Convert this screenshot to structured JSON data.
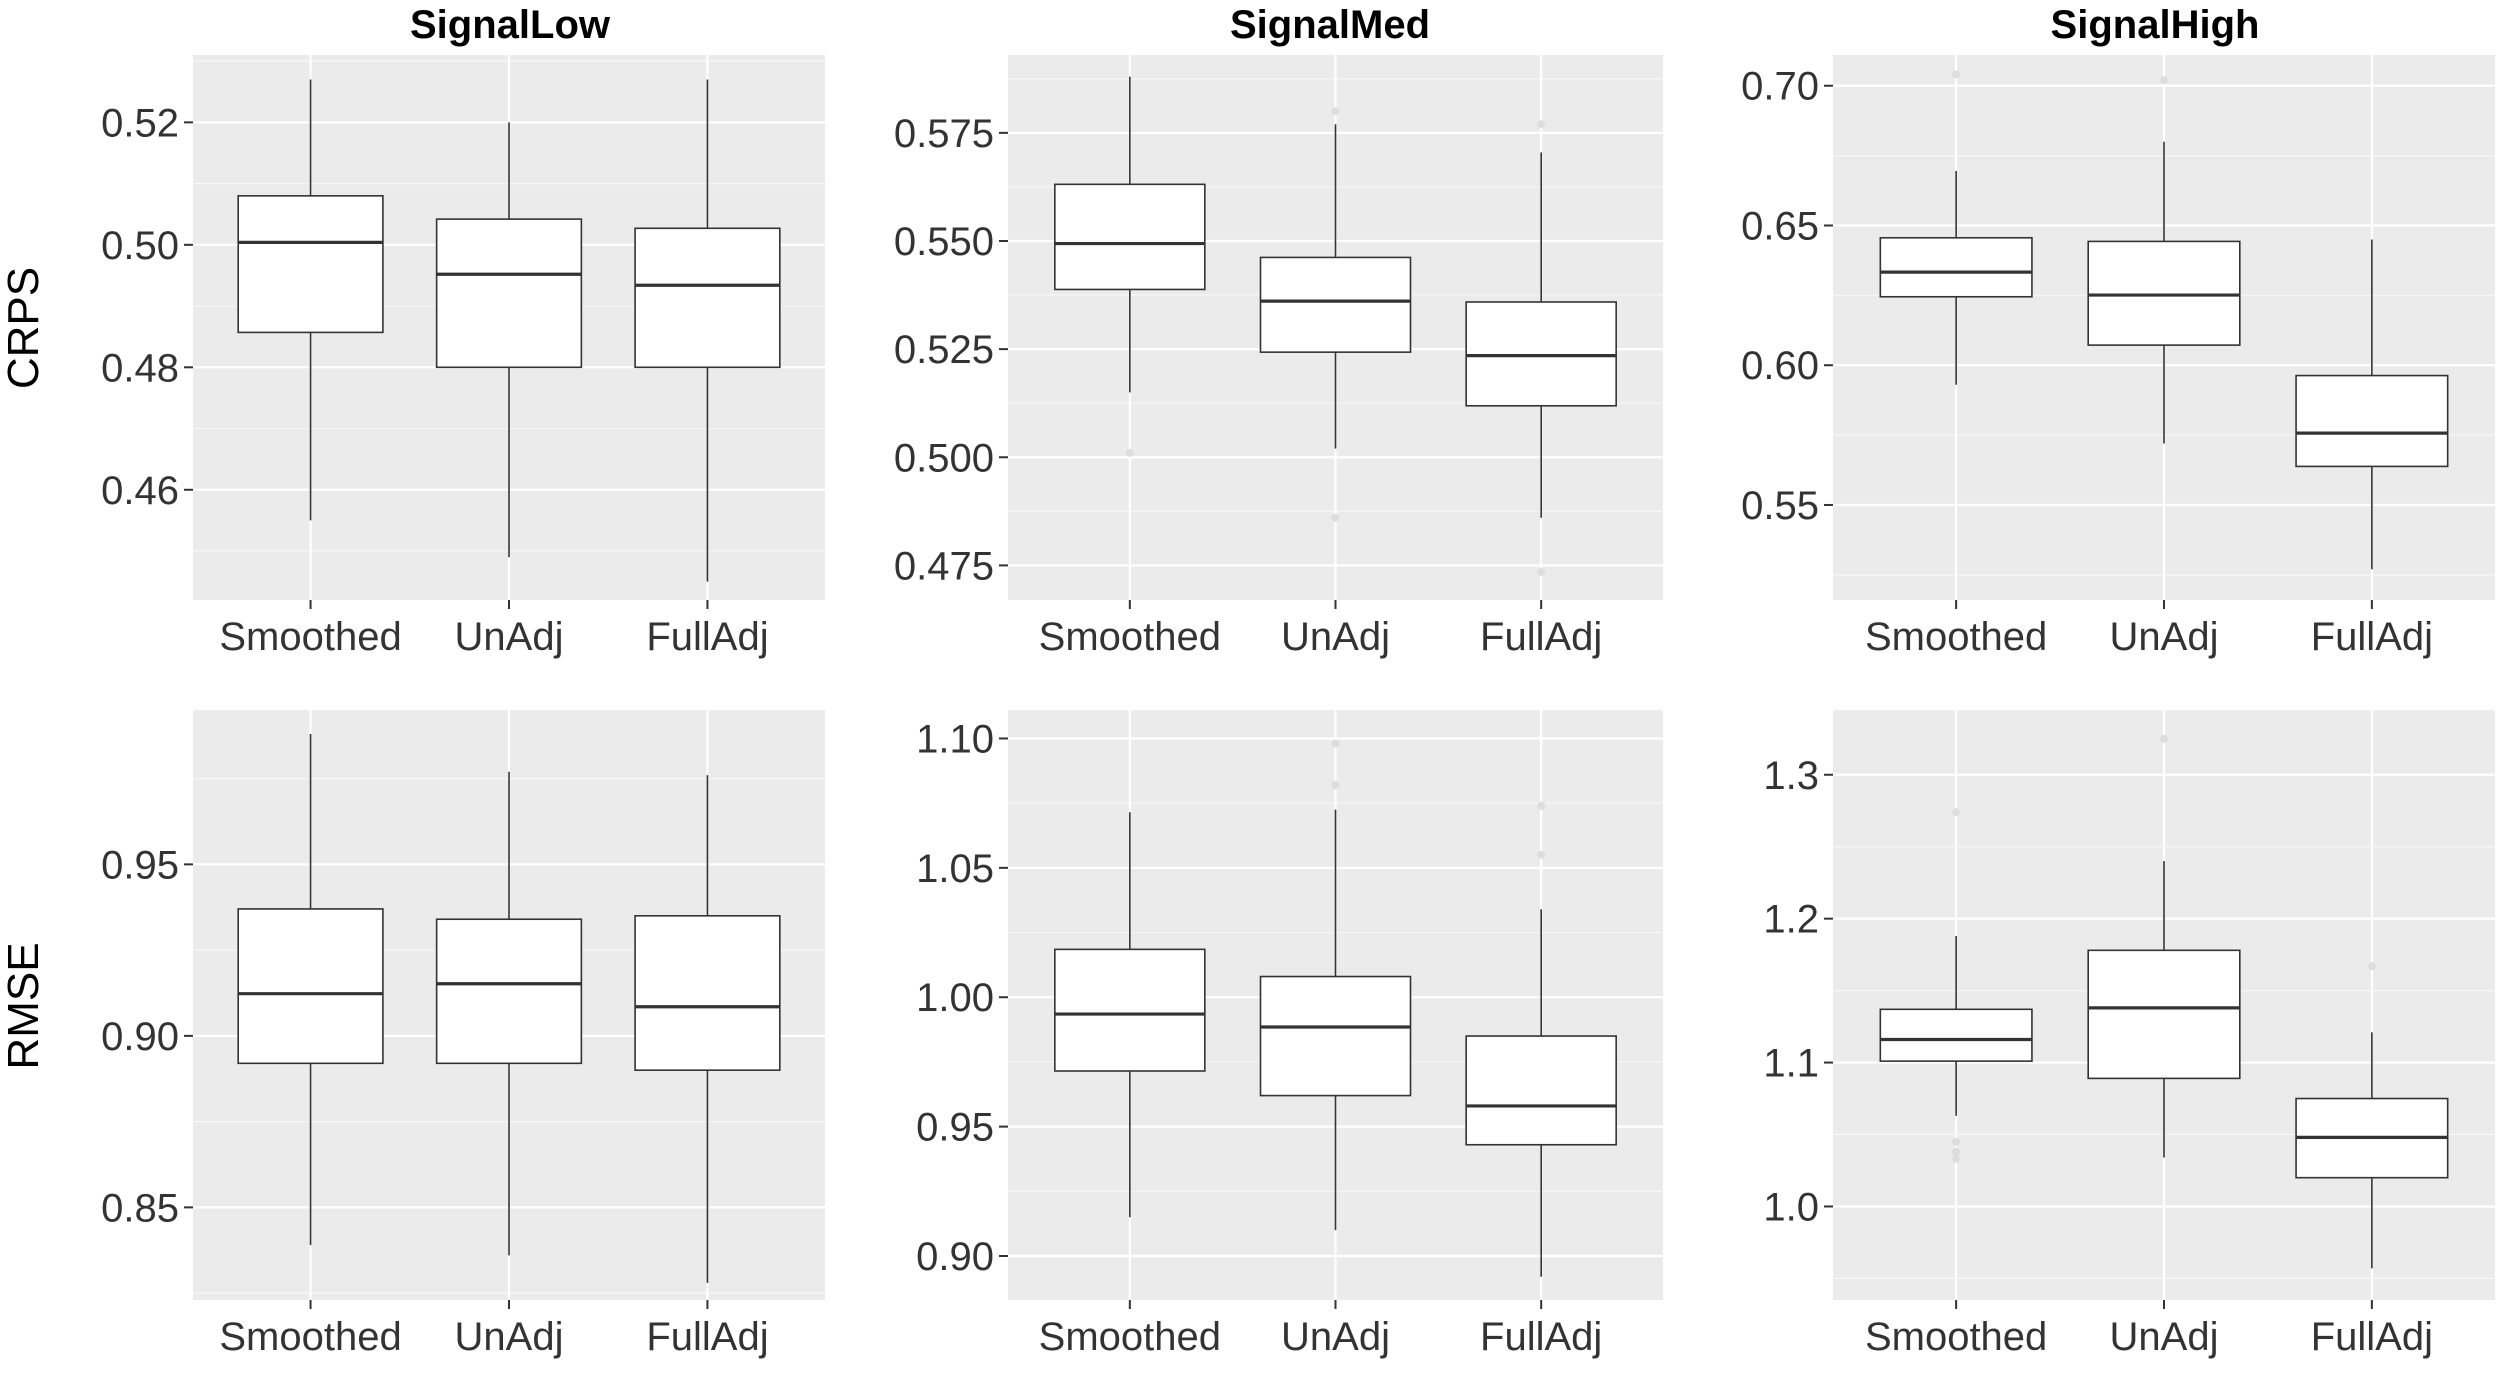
{
  "chart_data": {
    "type": "boxplot",
    "columns": [
      "SignalLow",
      "SignalMed",
      "SignalHigh"
    ],
    "rows": [
      "CRPS",
      "RMSE"
    ],
    "categories": [
      "Smoothed",
      "UnAdj",
      "FullAdj"
    ],
    "panels": [
      {
        "row": "CRPS",
        "column": "SignalLow",
        "ylim": [
          0.442,
          0.531
        ],
        "yticks": [
          0.46,
          0.48,
          0.5,
          0.52
        ],
        "tick_labels": [
          "0.46",
          "0.48",
          "0.50",
          "0.52"
        ],
        "boxes": [
          {
            "category": "Smoothed",
            "min": 0.455,
            "q1": 0.4857,
            "median": 0.5004,
            "q3": 0.508,
            "max": 0.527,
            "outliers": []
          },
          {
            "category": "UnAdj",
            "min": 0.449,
            "q1": 0.48,
            "median": 0.4952,
            "q3": 0.5042,
            "max": 0.52,
            "outliers": []
          },
          {
            "category": "FullAdj",
            "min": 0.445,
            "q1": 0.48,
            "median": 0.4934,
            "q3": 0.5027,
            "max": 0.527,
            "outliers": []
          }
        ]
      },
      {
        "row": "CRPS",
        "column": "SignalMed",
        "ylim": [
          0.467,
          0.593
        ],
        "yticks": [
          0.475,
          0.5,
          0.525,
          0.55,
          0.575
        ],
        "tick_labels": [
          "0.475",
          "0.500",
          "0.525",
          "0.550",
          "0.575"
        ],
        "boxes": [
          {
            "category": "Smoothed",
            "min": 0.515,
            "q1": 0.5388,
            "median": 0.5494,
            "q3": 0.5631,
            "max": 0.588,
            "outliers": [
              0.501
            ]
          },
          {
            "category": "UnAdj",
            "min": 0.502,
            "q1": 0.5243,
            "median": 0.5361,
            "q3": 0.5462,
            "max": 0.577,
            "outliers": [
              0.58,
              0.486
            ]
          },
          {
            "category": "FullAdj",
            "min": 0.486,
            "q1": 0.5119,
            "median": 0.5235,
            "q3": 0.5359,
            "max": 0.5705,
            "outliers": [
              0.577,
              0.4735
            ]
          }
        ]
      },
      {
        "row": "CRPS",
        "column": "SignalHigh",
        "ylim": [
          0.516,
          0.711
        ],
        "yticks": [
          0.55,
          0.6,
          0.65,
          0.7
        ],
        "tick_labels": [
          "0.55",
          "0.60",
          "0.65",
          "0.70"
        ],
        "boxes": [
          {
            "category": "Smoothed",
            "min": 0.593,
            "q1": 0.6245,
            "median": 0.6333,
            "q3": 0.6456,
            "max": 0.6695,
            "outliers": [
              0.704
            ]
          },
          {
            "category": "UnAdj",
            "min": 0.572,
            "q1": 0.6072,
            "median": 0.6251,
            "q3": 0.6443,
            "max": 0.68,
            "outliers": [
              0.702
            ]
          },
          {
            "category": "FullAdj",
            "min": 0.527,
            "q1": 0.5638,
            "median": 0.5757,
            "q3": 0.5963,
            "max": 0.645,
            "outliers": []
          }
        ]
      },
      {
        "row": "RMSE",
        "column": "SignalLow",
        "ylim": [
          0.823,
          0.995
        ],
        "yticks": [
          0.85,
          0.9,
          0.95
        ],
        "tick_labels": [
          "0.85",
          "0.90",
          "0.95"
        ],
        "boxes": [
          {
            "category": "Smoothed",
            "min": 0.839,
            "q1": 0.892,
            "median": 0.9123,
            "q3": 0.937,
            "max": 0.988,
            "outliers": []
          },
          {
            "category": "UnAdj",
            "min": 0.836,
            "q1": 0.892,
            "median": 0.9152,
            "q3": 0.934,
            "max": 0.977,
            "outliers": []
          },
          {
            "category": "FullAdj",
            "min": 0.828,
            "q1": 0.89,
            "median": 0.9085,
            "q3": 0.935,
            "max": 0.976,
            "outliers": []
          }
        ]
      },
      {
        "row": "RMSE",
        "column": "SignalMed",
        "ylim": [
          0.883,
          1.111
        ],
        "yticks": [
          0.9,
          0.95,
          1.0,
          1.05,
          1.1
        ],
        "tick_labels": [
          "0.90",
          "0.95",
          "1.00",
          "1.05",
          "1.10"
        ],
        "boxes": [
          {
            "category": "Smoothed",
            "min": 0.915,
            "q1": 0.9715,
            "median": 0.9935,
            "q3": 1.0185,
            "max": 1.0715,
            "outliers": []
          },
          {
            "category": "UnAdj",
            "min": 0.91,
            "q1": 0.962,
            "median": 0.9885,
            "q3": 1.008,
            "max": 1.0725,
            "outliers": [
              1.082,
              1.098
            ]
          },
          {
            "category": "FullAdj",
            "min": 0.892,
            "q1": 0.943,
            "median": 0.958,
            "q3": 0.985,
            "max": 1.034,
            "outliers": [
              1.055,
              1.074
            ]
          }
        ]
      },
      {
        "row": "RMSE",
        "column": "SignalHigh",
        "ylim": [
          0.935,
          1.345
        ],
        "yticks": [
          1.0,
          1.1,
          1.2,
          1.3
        ],
        "tick_labels": [
          "1.0",
          "1.1",
          "1.2",
          "1.3"
        ],
        "boxes": [
          {
            "category": "Smoothed",
            "min": 1.063,
            "q1": 1.101,
            "median": 1.116,
            "q3": 1.137,
            "max": 1.188,
            "outliers": [
              1.274,
              1.045,
              1.038,
              1.033
            ]
          },
          {
            "category": "UnAdj",
            "min": 1.034,
            "q1": 1.089,
            "median": 1.138,
            "q3": 1.178,
            "max": 1.24,
            "outliers": [
              1.325
            ]
          },
          {
            "category": "FullAdj",
            "min": 0.957,
            "q1": 1.02,
            "median": 1.048,
            "q3": 1.075,
            "max": 1.121,
            "outliers": [
              1.167
            ]
          }
        ]
      }
    ]
  }
}
